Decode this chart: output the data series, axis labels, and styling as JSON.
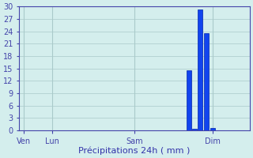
{
  "title": "",
  "xlabel": "Précipitations 24h ( mm )",
  "ylabel": "",
  "background_color": "#d4eeed",
  "plot_background": "#d4eeed",
  "bar_color": "#1144ee",
  "bar_edge_color": "#0022aa",
  "grid_color": "#aacaca",
  "axis_color": "#4444aa",
  "tick_label_color": "#3333aa",
  "xlabel_color": "#3333aa",
  "ylim": [
    0,
    30
  ],
  "yticks": [
    0,
    3,
    6,
    9,
    12,
    15,
    18,
    21,
    24,
    27,
    30
  ],
  "xlim": [
    0,
    28
  ],
  "xtick_labels": [
    "Ven",
    "Lun",
    "Sam",
    "Dim"
  ],
  "xtick_positions": [
    0.5,
    4.0,
    14.0,
    23.5
  ],
  "vlines": [
    0.5,
    4.0,
    14.0,
    23.5
  ],
  "bars": [
    {
      "x": 20.6,
      "height": 14.5
    },
    {
      "x": 21.3,
      "height": 0.4
    },
    {
      "x": 22.0,
      "height": 29.2
    },
    {
      "x": 22.7,
      "height": 23.5
    },
    {
      "x": 23.5,
      "height": 0.6
    }
  ],
  "bar_width": 0.55
}
